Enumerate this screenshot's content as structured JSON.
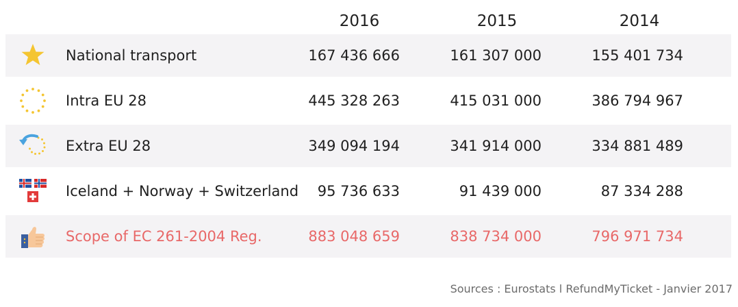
{
  "years": [
    "2016",
    "2015",
    "2014"
  ],
  "rows": [
    {
      "label": "National transport",
      "values": [
        "167 436 666",
        "161 307 000",
        "155 401 734"
      ],
      "icon": "star-icon"
    },
    {
      "label": "Intra EU 28",
      "values": [
        "445 328 263",
        "415 031 000",
        "386 794 967"
      ],
      "icon": "eu-stars-icon"
    },
    {
      "label": "Extra EU 28",
      "values": [
        "349 094 194",
        "341 914 000",
        "334 881 489"
      ],
      "icon": "outbound-arrow-icon"
    },
    {
      "label": "Iceland + Norway + Switzerland",
      "values": [
        "95 736 633",
        "91 439 000",
        "87 334 288"
      ],
      "icon": "flags-icon"
    },
    {
      "label": "Scope of EC 261-2004 Reg.",
      "values": [
        "883 048 659",
        "838 734 000",
        "796 971 734"
      ],
      "icon": "thumbs-up-icon"
    }
  ],
  "source": "Sources : Eurostats l RefundMyTicket - Janvier 2017",
  "colors": {
    "highlight": "#e86868",
    "shade": "#f4f3f5",
    "star": "#f4c531",
    "arrow": "#4aa3df"
  }
}
